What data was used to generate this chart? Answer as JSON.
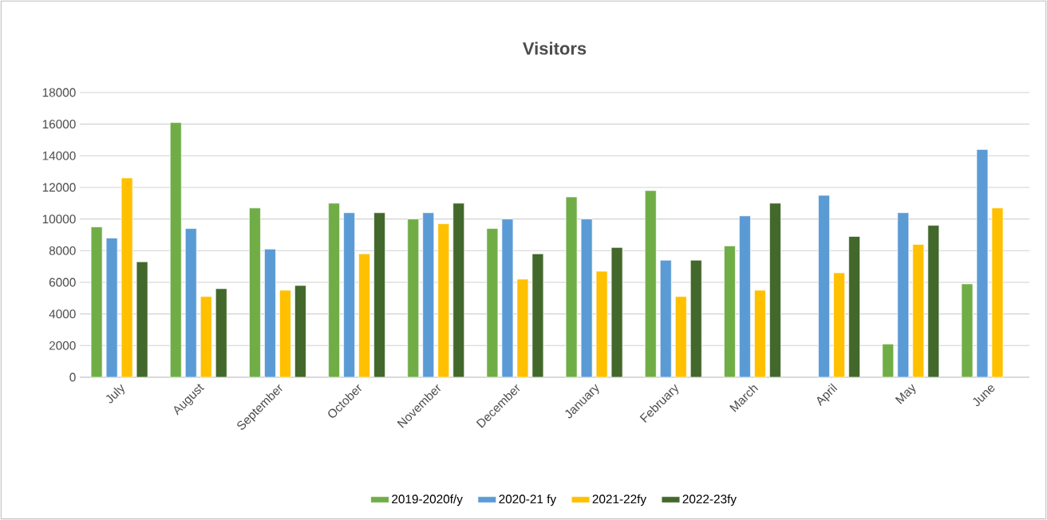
{
  "chart_data": {
    "type": "bar",
    "title": "Visitors",
    "categories": [
      "July",
      "August",
      "September",
      "October",
      "November",
      "December",
      "January",
      "February",
      "March",
      "April",
      "May",
      "June"
    ],
    "series": [
      {
        "name": "2019-2020f/y",
        "color": "#70ad47",
        "values": [
          9500,
          16100,
          10700,
          11000,
          10000,
          9400,
          11400,
          11800,
          8300,
          null,
          2100,
          5900
        ]
      },
      {
        "name": "2020-21 fy",
        "color": "#5b9bd5",
        "values": [
          8800,
          9400,
          8100,
          10400,
          10400,
          10000,
          10000,
          7400,
          10200,
          11500,
          10400,
          14400
        ]
      },
      {
        "name": "2021-22fy",
        "color": "#ffc000",
        "values": [
          12600,
          5100,
          5500,
          7800,
          9700,
          6200,
          6700,
          5100,
          5500,
          6600,
          8400,
          10700
        ]
      },
      {
        "name": "2022-23fy",
        "color": "#43682b",
        "values": [
          7300,
          5600,
          5800,
          10400,
          11000,
          7800,
          8200,
          7400,
          11000,
          8900,
          9600,
          null
        ]
      }
    ],
    "ylim": [
      0,
      18000
    ],
    "yticks": [
      0,
      2000,
      4000,
      6000,
      8000,
      10000,
      12000,
      14000,
      16000,
      18000
    ],
    "grid": "y",
    "legend": "bottom"
  }
}
